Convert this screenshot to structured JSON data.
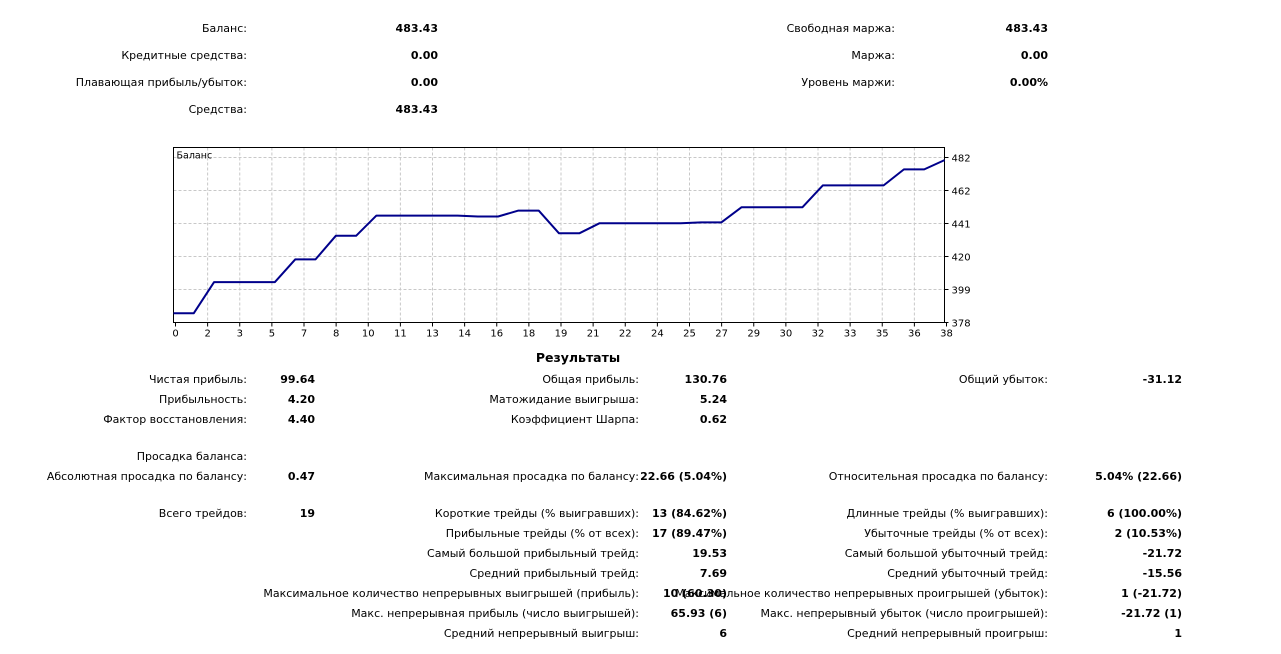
{
  "account": {
    "balance_label": "Баланс:",
    "balance_value": "483.43",
    "credit_label": "Кредитные средства:",
    "credit_value": "0.00",
    "floating_label": "Плавающая прибыль/убыток:",
    "floating_value": "0.00",
    "equity_label": "Средства:",
    "equity_value": "483.43",
    "free_margin_label": "Свободная маржа:",
    "free_margin_value": "483.43",
    "margin_label": "Маржа:",
    "margin_value": "0.00",
    "margin_level_label": "Уровень маржи:",
    "margin_level_value": "0.00%"
  },
  "chart_data": {
    "type": "line",
    "legend": "Баланс",
    "line_color": "#00008b",
    "grid": true,
    "x_ticks": [
      "0",
      "2",
      "3",
      "5",
      "7",
      "8",
      "10",
      "11",
      "13",
      "14",
      "16",
      "18",
      "19",
      "21",
      "22",
      "24",
      "25",
      "27",
      "29",
      "30",
      "32",
      "33",
      "35",
      "36",
      "38"
    ],
    "y_ticks": [
      "482",
      "462",
      "441",
      "420",
      "399",
      "378"
    ],
    "ylim": [
      378,
      482
    ],
    "xlim": [
      0,
      38
    ],
    "series": [
      {
        "x": [
          0,
          1,
          2,
          5,
          6,
          7,
          8,
          9,
          10,
          11,
          12,
          13,
          14,
          15,
          16,
          17,
          18,
          19,
          20,
          21,
          22,
          23,
          24,
          25,
          26,
          27,
          28,
          29,
          30,
          31,
          32,
          33,
          34,
          35,
          36,
          37,
          38
        ],
        "y": [
          383.5,
          383.5,
          402,
          402,
          415.5,
          415.5,
          429.5,
          429.5,
          441.5,
          441.5,
          441.5,
          441.5,
          441.5,
          441,
          441,
          444.5,
          444.5,
          431,
          431,
          437,
          437,
          437,
          437,
          437,
          437.5,
          437.5,
          446.5,
          446.5,
          446.5,
          446.5,
          459.5,
          459.5,
          459.5,
          459.5,
          469,
          469,
          474.5
        ]
      }
    ]
  },
  "results": {
    "title": "Результаты",
    "net_profit_label": "Чистая прибыль:",
    "net_profit_value": "99.64",
    "gross_profit_label": "Общая прибыль:",
    "gross_profit_value": "130.76",
    "gross_loss_label": "Общий убыток:",
    "gross_loss_value": "-31.12",
    "profit_factor_label": "Прибыльность:",
    "profit_factor_value": "4.20",
    "expected_payoff_label": "Матожидание выигрыша:",
    "expected_payoff_value": "5.24",
    "recovery_factor_label": "Фактор восстановления:",
    "recovery_factor_value": "4.40",
    "sharpe_label": "Коэффициент Шарпа:",
    "sharpe_value": "0.62",
    "balance_drawdown_label": "Просадка баланса:",
    "abs_drawdown_label": "Абсолютная просадка по балансу:",
    "abs_drawdown_value": "0.47",
    "max_drawdown_label": "Максимальная просадка по балансу:",
    "max_drawdown_value": "22.66 (5.04%)",
    "rel_drawdown_label": "Относительная просадка по балансу:",
    "rel_drawdown_value": "5.04% (22.66)",
    "total_trades_label": "Всего трейдов:",
    "total_trades_value": "19",
    "short_trades_label": "Короткие трейды (% выигравших):",
    "short_trades_value": "13 (84.62%)",
    "long_trades_label": "Длинные трейды (% выигравших):",
    "long_trades_value": "6 (100.00%)",
    "profit_trades_label": "Прибыльные трейды (% от всех):",
    "profit_trades_value": "17 (89.47%)",
    "loss_trades_label": "Убыточные трейды (% от всех):",
    "loss_trades_value": "2 (10.53%)",
    "largest_profit_label": "Самый большой прибыльный трейд:",
    "largest_profit_value": "19.53",
    "largest_loss_label": "Самый большой убыточный трейд:",
    "largest_loss_value": "-21.72",
    "avg_profit_label": "Средний прибыльный трейд:",
    "avg_profit_value": "7.69",
    "avg_loss_label": "Средний убыточный трейд:",
    "avg_loss_value": "-15.56",
    "max_cons_wins_label": "Максимальное количество непрерывных выигрышей (прибыль):",
    "max_cons_wins_value": "10 (60.30)",
    "max_cons_losses_label": "Максимальное количество непрерывных проигрышей (убыток):",
    "max_cons_losses_value": "1 (-21.72)",
    "max_cons_profit_label": "Макс. непрерывная прибыль (число выигрышей):",
    "max_cons_profit_value": "65.93 (6)",
    "max_cons_loss_label": "Макс. непрерывный убыток (число проигрышей):",
    "max_cons_loss_value": "-21.72 (1)",
    "avg_cons_wins_label": "Средний непрерывный выигрыш:",
    "avg_cons_wins_value": "6",
    "avg_cons_losses_label": "Средний непрерывный проигрыш:",
    "avg_cons_losses_value": "1"
  }
}
